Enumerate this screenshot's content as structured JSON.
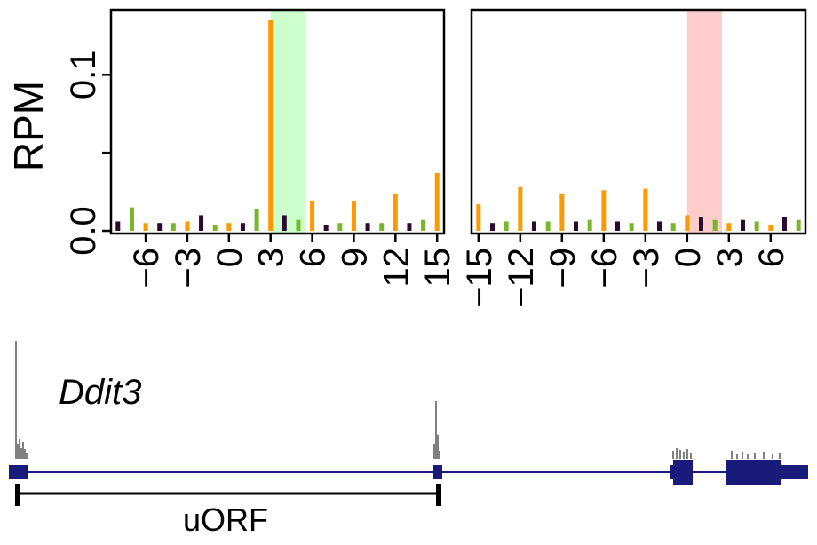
{
  "chart_data": [
    {
      "type": "bar",
      "panel": "left",
      "ylabel": "RPM",
      "ylim": [
        0,
        0.14
      ],
      "yticks": [
        {
          "value": 0.0,
          "label": "0.0"
        },
        {
          "value": 0.1,
          "label": "0.1"
        }
      ],
      "xlim": [
        -8.5,
        15.5
      ],
      "xticks": [
        {
          "value": -6,
          "label": "−6"
        },
        {
          "value": -3,
          "label": "−3"
        },
        {
          "value": 0,
          "label": "0"
        },
        {
          "value": 3,
          "label": "3"
        },
        {
          "value": 6,
          "label": "6"
        },
        {
          "value": 9,
          "label": "9"
        },
        {
          "value": 12,
          "label": "12"
        },
        {
          "value": 15,
          "label": "15"
        }
      ],
      "highlight": {
        "from": 3,
        "to": 5.5,
        "color": "#ccffcc"
      },
      "frame_colors": {
        "0": "#ff9900",
        "1": "#2a0a2e",
        "2": "#77b82a"
      },
      "x": [
        -8,
        -7,
        -6,
        -5,
        -4,
        -3,
        -2,
        -1,
        0,
        1,
        2,
        3,
        4,
        5,
        6,
        7,
        8,
        9,
        10,
        11,
        12,
        13,
        14,
        15
      ],
      "values": [
        0.006,
        0.015,
        0.005,
        0.005,
        0.005,
        0.006,
        0.01,
        0.004,
        0.005,
        0.005,
        0.014,
        0.135,
        0.01,
        0.007,
        0.019,
        0.004,
        0.005,
        0.019,
        0.005,
        0.005,
        0.024,
        0.005,
        0.007,
        0.037
      ]
    },
    {
      "type": "bar",
      "panel": "right",
      "ylim": [
        0,
        0.14
      ],
      "xlim": [
        -15.5,
        8.5
      ],
      "xticks": [
        {
          "value": -15,
          "label": "−15"
        },
        {
          "value": -12,
          "label": "−12"
        },
        {
          "value": -9,
          "label": "−9"
        },
        {
          "value": -6,
          "label": "−6"
        },
        {
          "value": -3,
          "label": "−3"
        },
        {
          "value": 0,
          "label": "0"
        },
        {
          "value": 3,
          "label": "3"
        },
        {
          "value": 6,
          "label": "6"
        }
      ],
      "highlight": {
        "from": 0,
        "to": 2.5,
        "color": "#ffcccc"
      },
      "frame_colors": {
        "0": "#ff9900",
        "1": "#2a0a2e",
        "2": "#77b82a"
      },
      "x": [
        -15,
        -14,
        -13,
        -12,
        -11,
        -10,
        -9,
        -8,
        -7,
        -6,
        -5,
        -4,
        -3,
        -2,
        -1,
        0,
        1,
        2,
        3,
        4,
        5,
        6,
        7,
        8
      ],
      "values": [
        0.017,
        0.005,
        0.006,
        0.028,
        0.006,
        0.006,
        0.024,
        0.006,
        0.007,
        0.026,
        0.006,
        0.005,
        0.027,
        0.006,
        0.005,
        0.01,
        0.009,
        0.007,
        0.005,
        0.007,
        0.006,
        0.004,
        0.009,
        0.007
      ]
    }
  ],
  "track": {
    "gene_name": "Ddit3",
    "orf_label": "uORF",
    "exon_color": "#1a1a7a",
    "line_color": "#1a1a7a"
  }
}
